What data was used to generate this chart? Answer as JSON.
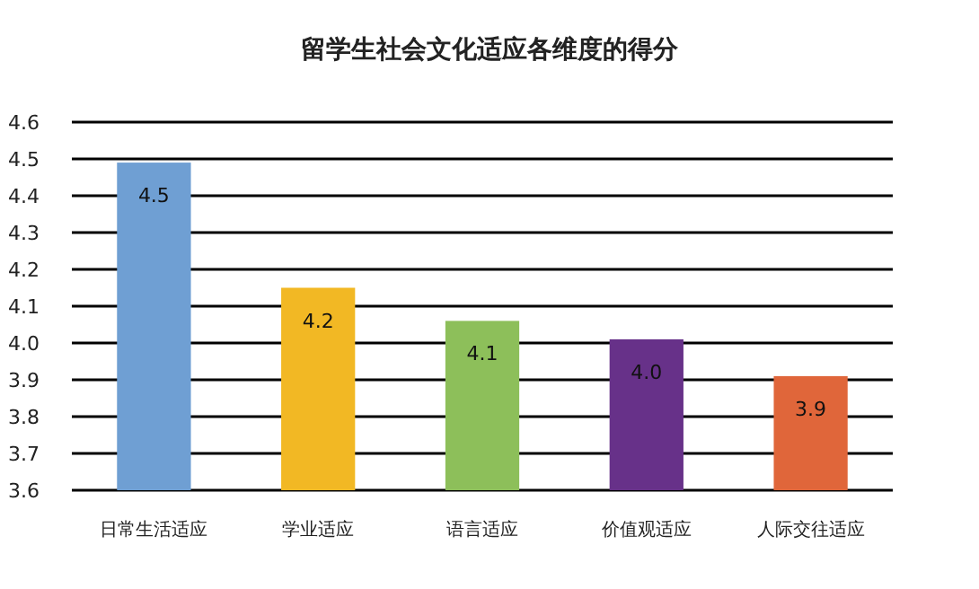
{
  "chart_data": {
    "type": "bar",
    "title": "留学生社会文化适应各维度的得分",
    "categories": [
      "日常生活适应",
      "学业适应",
      "语言适应",
      "价值观适应",
      "人际交往适应"
    ],
    "values": [
      4.49,
      4.15,
      4.06,
      4.01,
      3.91
    ],
    "value_labels": [
      "4.5",
      "4.2",
      "4.1",
      "4.0",
      "3.9"
    ],
    "colors": [
      "#6f9fd3",
      "#f2b824",
      "#8dbf5a",
      "#673189",
      "#e0663a"
    ],
    "ylim": [
      3.6,
      4.6
    ],
    "yticks": [
      3.6,
      3.7,
      3.8,
      3.9,
      {
        "value": 4.0,
        "label": "4.0"
      },
      4.1,
      4.2,
      4.3,
      4.4,
      4.5,
      4.6
    ],
    "grid": "y"
  }
}
